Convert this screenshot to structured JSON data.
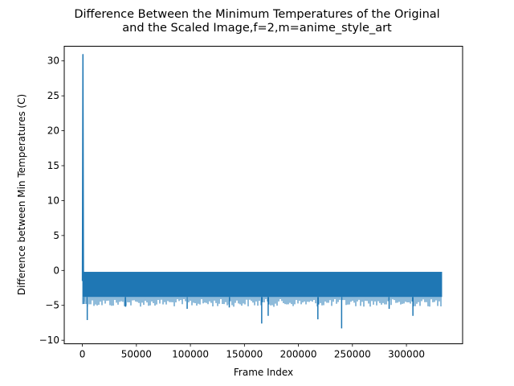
{
  "chart_data": {
    "type": "line",
    "title_lines": [
      "Difference Between the Minimum Temperatures of the Original",
      "and the Scaled Image,f=2,m=anime_style_art"
    ],
    "xlabel": "Frame Index",
    "ylabel": "Difference between Min Temperatures (C)",
    "xlim": [
      -16800,
      352000
    ],
    "ylim": [
      -10.5,
      32.1
    ],
    "x_ticks": [
      0,
      50000,
      100000,
      150000,
      200000,
      250000,
      300000
    ],
    "x_tick_labels": [
      "0",
      "50000",
      "100000",
      "150000",
      "200000",
      "250000",
      "300000"
    ],
    "y_ticks": [
      -10,
      -5,
      0,
      5,
      10,
      15,
      20,
      25,
      30
    ],
    "y_tick_labels": [
      "−10",
      "−5",
      "0",
      "5",
      "10",
      "15",
      "20",
      "25",
      "30"
    ],
    "grid": false,
    "series": [
      {
        "color": "#1f77b4",
        "x_range": [
          0,
          333000
        ],
        "band_upper": -0.2,
        "band_lower": -3.8,
        "dense_oscillation": true,
        "peak_points": [
          {
            "x": 0,
            "y": -1.5
          },
          {
            "x": 500,
            "y": 30.9
          },
          {
            "x": 1000,
            "y": -2.0
          }
        ],
        "dip_points": [
          {
            "x": 1500,
            "y": -4.8
          },
          {
            "x": 4500,
            "y": -7.1
          },
          {
            "x": 40000,
            "y": -5.2
          },
          {
            "x": 97000,
            "y": -5.5
          },
          {
            "x": 136000,
            "y": -5.3
          },
          {
            "x": 166000,
            "y": -7.6
          },
          {
            "x": 172000,
            "y": -6.5
          },
          {
            "x": 218000,
            "y": -7.0
          },
          {
            "x": 240000,
            "y": -8.3
          },
          {
            "x": 284000,
            "y": -5.5
          },
          {
            "x": 306000,
            "y": -6.5
          }
        ]
      }
    ]
  }
}
